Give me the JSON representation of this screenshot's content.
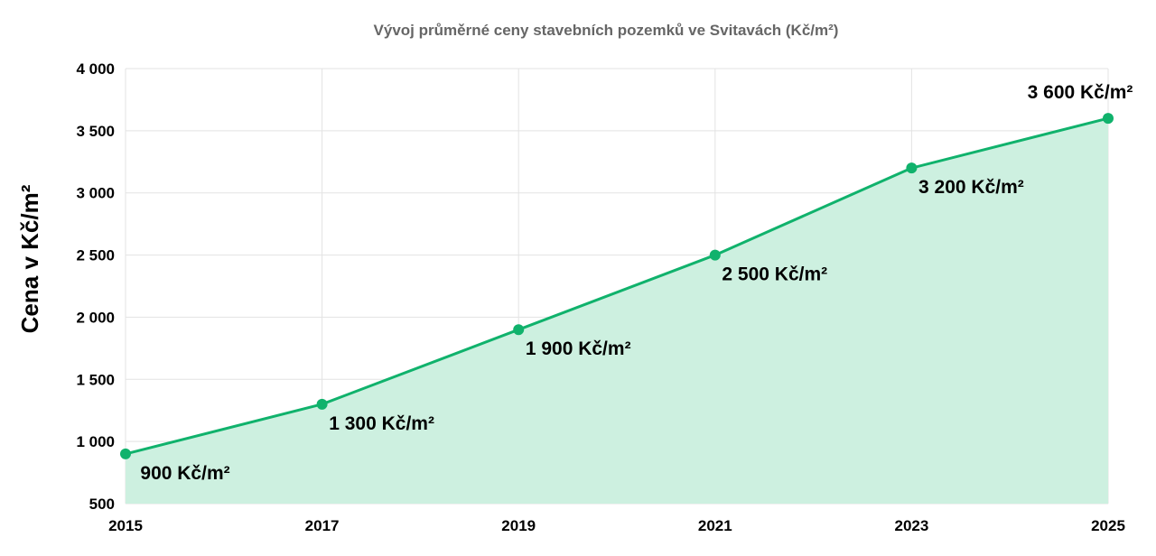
{
  "chart_data": {
    "type": "area",
    "title": "Vývoj průměrné ceny stavebních pozemků ve Svitavách (Kč/m²)",
    "xlabel": "",
    "ylabel": "Cena v Kč/m²",
    "categories": [
      "2015",
      "2017",
      "2019",
      "2021",
      "2023",
      "2025"
    ],
    "series": [
      {
        "values": [
          900,
          1300,
          1900,
          2500,
          3200,
          3600
        ],
        "labels": [
          "900 Kč/m²",
          "1 300 Kč/m²",
          "1 900 Kč/m²",
          "2 500 Kč/m²",
          "3 200 Kč/m²",
          "3 600 Kč/m²"
        ]
      }
    ],
    "ylim": [
      500,
      4000
    ],
    "yticks": [
      500,
      1000,
      1500,
      2000,
      2500,
      3000,
      3500,
      4000
    ],
    "ytick_labels": [
      "500",
      "1 000",
      "1 500",
      "2 000",
      "2 500",
      "3 000",
      "3 500",
      "4 000"
    ],
    "grid": true,
    "legend": "none",
    "colors": {
      "line": "#10b26c",
      "fill": "#cdf0e0",
      "point": "#10b26c"
    }
  }
}
